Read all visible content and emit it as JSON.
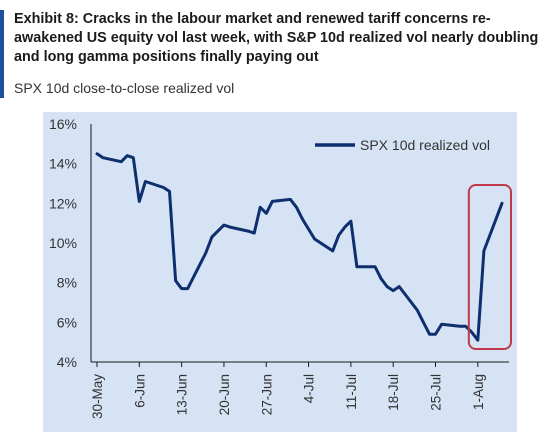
{
  "title": "Exhibit 8: Cracks in the labour market and renewed tariff concerns re-awakened US equity vol last week, with S&P 10d realized vol nearly doubling and long gamma positions finally paying out",
  "subtitle": "SPX 10d close-to-close realized vol",
  "colors": {
    "plot_background": "#d5e3f5",
    "line": "#0f2e6e",
    "highlight_box": "#c0394b",
    "accent": "#1f4e9c"
  },
  "chart_data": {
    "type": "line",
    "title": "",
    "xlabel": "",
    "ylabel": "",
    "grid": false,
    "legend_position": "top-right",
    "ylim": [
      4,
      16
    ],
    "y_ticks": [
      "4%",
      "6%",
      "8%",
      "10%",
      "12%",
      "14%",
      "16%"
    ],
    "x_ticks": [
      "30-May",
      "6-Jun",
      "13-Jun",
      "20-Jun",
      "27-Jun",
      "4-Jul",
      "11-Jul",
      "18-Jul",
      "25-Jul",
      "1-Aug"
    ],
    "series": [
      {
        "name": "SPX 10d realized vol",
        "x": [
          "30-May",
          "31-May",
          "3-Jun",
          "4-Jun",
          "5-Jun",
          "6-Jun",
          "7-Jun",
          "10-Jun",
          "11-Jun",
          "12-Jun",
          "13-Jun",
          "14-Jun",
          "17-Jun",
          "18-Jun",
          "20-Jun",
          "21-Jun",
          "24-Jun",
          "25-Jun",
          "26-Jun",
          "27-Jun",
          "28-Jun",
          "1-Jul",
          "2-Jul",
          "3-Jul",
          "5-Jul",
          "8-Jul",
          "9-Jul",
          "10-Jul",
          "11-Jul",
          "12-Jul",
          "15-Jul",
          "16-Jul",
          "17-Jul",
          "18-Jul",
          "19-Jul",
          "22-Jul",
          "23-Jul",
          "24-Jul",
          "25-Jul",
          "26-Jul",
          "29-Jul",
          "30-Jul",
          "31-Jul",
          "1-Aug",
          "2-Aug"
        ],
        "values": [
          14.5,
          14.3,
          14.1,
          14.4,
          14.3,
          12.1,
          13.1,
          12.8,
          12.6,
          8.1,
          7.7,
          7.7,
          9.5,
          10.3,
          10.9,
          10.8,
          10.6,
          10.5,
          11.8,
          11.5,
          12.1,
          12.2,
          11.8,
          11.2,
          10.2,
          9.6,
          10.4,
          10.8,
          11.1,
          8.8,
          8.8,
          8.2,
          7.8,
          7.6,
          7.8,
          6.6,
          6.0,
          5.4,
          5.4,
          5.9,
          5.8,
          5.8,
          5.5,
          5.1,
          9.6
        ]
      }
    ],
    "series_tail": {
      "x": [
        "5-Aug"
      ],
      "values": [
        12.0
      ]
    },
    "annotations": [
      {
        "type": "box",
        "label": "",
        "x_start": "1-Aug",
        "x_end": "5-Aug"
      }
    ]
  }
}
